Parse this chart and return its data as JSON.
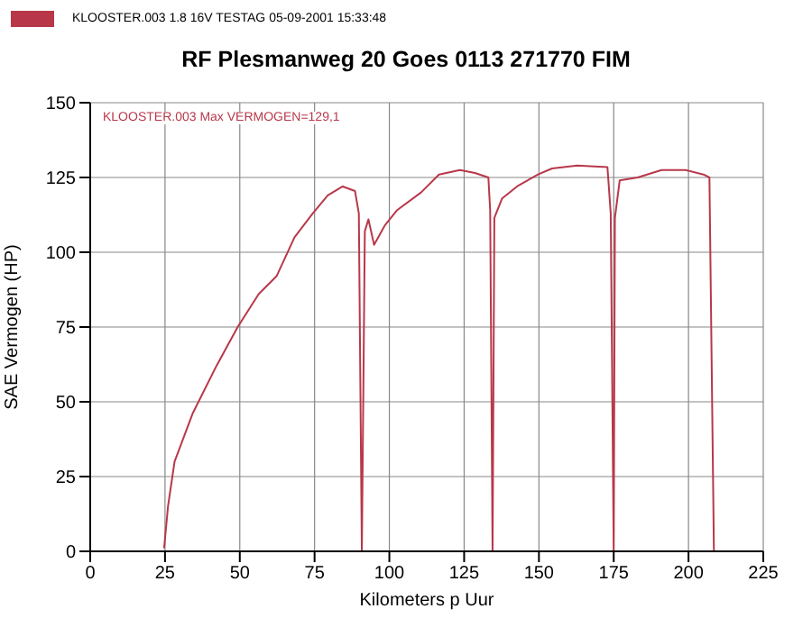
{
  "chart_data": {
    "type": "line",
    "title": "RF Plesmanweg 20 Goes 0113 271770 FIM",
    "xlabel": "Kilometers p Uur",
    "ylabel": "SAE Vermogen (HP)",
    "annotations": [
      "KLOOSTER.003  Max VERMOGEN=129,1"
    ],
    "legend": "top left",
    "grid": true,
    "marker": "none",
    "line_style": "solid",
    "xlim": [
      0,
      225
    ],
    "xticks": [
      0,
      25,
      50,
      75,
      100,
      125,
      150,
      175,
      200,
      225
    ],
    "ylim": [
      0,
      150
    ],
    "yticks": [
      0,
      25,
      50,
      75,
      100,
      125,
      150
    ],
    "series": [
      {
        "name": "KLOOSTER.003  1.8 16V TESTAG  05-09-2001 15:33:48",
        "color": "#b8384a",
        "x": [
          24.7,
          26,
          28.2,
          34.2,
          42.2,
          49.3,
          56.3,
          62.3,
          68.3,
          74.4,
          79.4,
          84.4,
          88.5,
          89.8,
          90.8,
          91.8,
          93,
          94.9,
          98.5,
          102.5,
          110.6,
          116.6,
          123.6,
          128.6,
          133.1,
          133.7,
          134.5,
          135.1,
          137.7,
          142.7,
          149.7,
          154.4,
          162.8,
          172.9,
          174,
          175,
          175.4,
          177,
          183,
          191,
          199,
          205,
          207,
          208.5
        ],
        "values": [
          1,
          15,
          30,
          46,
          62,
          75,
          86,
          92,
          105,
          113,
          119,
          122,
          120.5,
          113,
          0,
          107,
          111,
          102.5,
          109,
          114,
          120,
          126,
          127.5,
          126.5,
          125,
          114,
          0,
          111.5,
          118,
          122,
          126,
          128,
          129,
          128.5,
          113,
          0,
          111.5,
          124,
          125,
          127.5,
          127.5,
          126,
          125,
          0
        ]
      }
    ]
  }
}
